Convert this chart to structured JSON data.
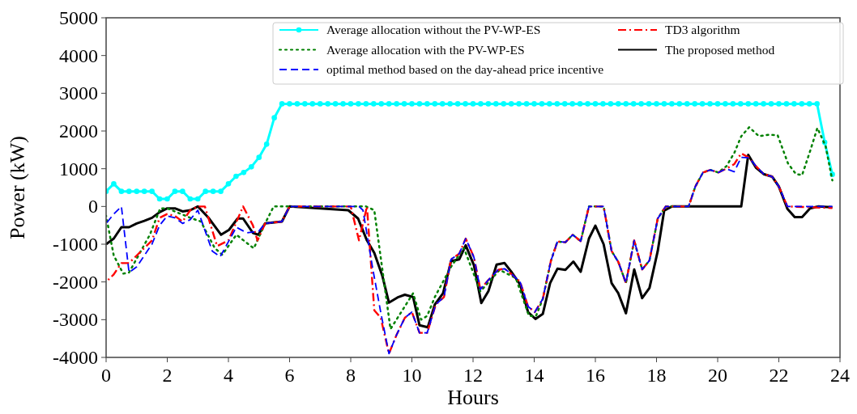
{
  "chart_data": {
    "type": "line",
    "xlabel": "Hours",
    "ylabel": "Power (kW)",
    "xlim": [
      0,
      24
    ],
    "ylim": [
      -4000,
      5000
    ],
    "xticks": [
      0,
      2,
      4,
      6,
      8,
      10,
      12,
      14,
      16,
      18,
      20,
      22,
      24
    ],
    "yticks": [
      -4000,
      -3000,
      -2000,
      -1000,
      0,
      1000,
      2000,
      3000,
      4000,
      5000
    ],
    "grid": false,
    "legend": "top right",
    "series": [
      {
        "name": "Average allocation without the PV-WP-ES",
        "color": "#00ffff",
        "marker": "circle",
        "line_style": "solid",
        "x": [
          0,
          0.25,
          0.5,
          0.75,
          1,
          1.25,
          1.5,
          1.75,
          2,
          2.25,
          2.5,
          2.75,
          3,
          3.25,
          3.5,
          3.75,
          4,
          4.25,
          4.5,
          4.75,
          5,
          5.25,
          5.5,
          5.75,
          6,
          6.25,
          6.5,
          6.75,
          7,
          7.25,
          7.5,
          7.75,
          8,
          8.25,
          8.5,
          8.75,
          9,
          9.25,
          9.5,
          9.75,
          10,
          10.25,
          10.5,
          10.75,
          11,
          11.25,
          11.5,
          11.75,
          12,
          12.25,
          12.5,
          12.75,
          13,
          13.25,
          13.5,
          13.75,
          14,
          14.25,
          14.5,
          14.75,
          15,
          15.25,
          15.5,
          15.75,
          16,
          16.25,
          16.5,
          16.75,
          17,
          17.25,
          17.5,
          17.75,
          18,
          18.25,
          18.5,
          18.75,
          19,
          19.25,
          19.5,
          19.75,
          20,
          20.25,
          20.5,
          20.75,
          21,
          21.25,
          21.5,
          21.75,
          22,
          22.25,
          22.5,
          22.75,
          23,
          23.25,
          23.5,
          23.75
        ],
        "values": [
          400,
          600,
          400,
          400,
          400,
          400,
          400,
          200,
          200,
          400,
          400,
          200,
          200,
          400,
          400,
          400,
          600,
          800,
          900,
          1050,
          1300,
          1650,
          2350,
          2720,
          2720,
          2720,
          2720,
          2720,
          2720,
          2720,
          2720,
          2720,
          2720,
          2720,
          2720,
          2720,
          2720,
          2720,
          2720,
          2720,
          2720,
          2720,
          2720,
          2720,
          2720,
          2720,
          2720,
          2720,
          2720,
          2720,
          2720,
          2720,
          2720,
          2720,
          2720,
          2720,
          2720,
          2720,
          2720,
          2720,
          2720,
          2720,
          2720,
          2720,
          2720,
          2720,
          2720,
          2720,
          2720,
          2720,
          2720,
          2720,
          2720,
          2720,
          2720,
          2720,
          2720,
          2720,
          2720,
          2720,
          2720,
          2720,
          2720,
          2720,
          2720,
          2720,
          2720,
          2720,
          2720,
          2720,
          2720,
          2720,
          2720,
          2720,
          1700,
          850
        ]
      },
      {
        "name": "Average allocation with the PV-WP-ES",
        "color": "#008000",
        "marker": "none",
        "line_style": "dotted",
        "x": [
          0,
          0.25,
          0.56,
          0.75,
          1.43,
          1.77,
          2.0,
          2.75,
          3.1,
          3.55,
          3.8,
          4.26,
          4.83,
          5.2,
          5.48,
          8.5,
          8.77,
          9.3,
          10.04,
          10.3,
          10.5,
          10.75,
          11.28,
          11.7,
          12.24,
          12.87,
          13.4,
          13.83,
          14.06,
          14.28,
          14.55,
          14.76,
          15.02,
          15.26,
          15.52,
          15.79,
          16.27,
          16.53,
          16.75,
          17.0,
          17.27,
          17.53,
          17.77,
          18.04,
          18.3,
          19.05,
          19.27,
          19.52,
          19.76,
          20.02,
          20.29,
          20.55,
          20.77,
          21.03,
          21.35,
          21.65,
          21.96,
          22.3,
          22.56,
          22.76,
          23.02,
          23.26,
          23.53,
          23.75
        ],
        "values": [
          -250,
          -1300,
          -1780,
          -1750,
          -750,
          -50,
          -50,
          -300,
          -400,
          -1100,
          -1280,
          -750,
          -1110,
          -450,
          0,
          0,
          -100,
          -3250,
          -2300,
          -3000,
          -2900,
          -2400,
          -1600,
          -1100,
          -2250,
          -1680,
          -1900,
          -2900,
          -2900,
          -2450,
          -1430,
          -930,
          -950,
          -750,
          -920,
          0,
          0,
          -1180,
          -1470,
          -2030,
          -900,
          -1670,
          -1430,
          -320,
          0,
          0,
          530,
          900,
          970,
          900,
          1070,
          1430,
          1860,
          2100,
          1860,
          1900,
          1890,
          1140,
          860,
          830,
          1460,
          2080,
          1600,
          690
        ]
      },
      {
        "name": "optimal method based on the day-ahead price incentive",
        "color": "#0000ff",
        "marker": "none",
        "line_style": "dashed",
        "x": [
          0,
          0.25,
          0.5,
          0.75,
          1,
          1.25,
          1.5,
          1.75,
          2,
          2.25,
          2.5,
          2.75,
          3,
          3.47,
          3.73,
          4.26,
          4.6,
          5,
          5.2,
          5.75,
          6,
          8.27,
          8.4,
          8.72,
          8.98,
          9.25,
          9.5,
          9.77,
          10,
          10.25,
          10.5,
          10.78,
          11.05,
          11.28,
          11.55,
          11.76,
          12.03,
          12.24,
          12.5,
          12.82,
          13.03,
          13.3,
          13.54,
          13.8,
          14.02,
          14.28,
          14.55,
          14.76,
          15.02,
          15.26,
          15.52,
          15.79,
          16.27,
          16.53,
          16.75,
          17,
          17.27,
          17.53,
          17.77,
          18.04,
          18.3,
          19.05,
          19.27,
          19.52,
          19.76,
          20.02,
          20.28,
          20.54,
          20.77,
          21.03,
          21.25,
          21.5,
          21.78,
          22,
          22.28,
          23.75
        ],
        "values": [
          -450,
          -200,
          0,
          -1750,
          -1600,
          -1300,
          -1000,
          -500,
          -250,
          -300,
          -450,
          -350,
          -100,
          -1180,
          -1330,
          -550,
          -700,
          -650,
          -450,
          -400,
          0,
          0,
          -100,
          -1650,
          -2800,
          -3900,
          -3400,
          -2950,
          -2800,
          -3350,
          -3350,
          -2600,
          -2400,
          -1400,
          -1250,
          -850,
          -1350,
          -2200,
          -1950,
          -1680,
          -1650,
          -1820,
          -2000,
          -2650,
          -2800,
          -2450,
          -1430,
          -930,
          -950,
          -750,
          -920,
          0,
          0,
          -1180,
          -1470,
          -2030,
          -900,
          -1670,
          -1430,
          -320,
          0,
          0,
          530,
          900,
          970,
          900,
          1000,
          920,
          1300,
          1290,
          1070,
          860,
          790,
          530,
          0,
          0
        ]
      },
      {
        "name": "TD3 algorithm",
        "color": "#ff0000",
        "marker": "none",
        "line_style": "dashdot",
        "x": [
          0,
          0.25,
          0.5,
          0.75,
          1,
          1.5,
          1.75,
          2,
          2.25,
          2.5,
          2.75,
          3,
          3.23,
          3.63,
          4,
          4.48,
          4.8,
          4.95,
          5.2,
          5.75,
          6,
          8,
          8.27,
          8.53,
          8.77,
          8.98,
          9.25,
          9.5,
          9.77,
          10,
          10.25,
          10.5,
          10.78,
          11.05,
          11.28,
          11.55,
          11.76,
          12.03,
          12.24,
          12.5,
          12.82,
          13.03,
          13.3,
          13.54,
          13.8,
          14.02,
          14.28,
          14.55,
          14.76,
          15.02,
          15.26,
          15.52,
          15.79,
          16.27,
          16.53,
          16.75,
          17,
          17.27,
          17.53,
          17.77,
          18.04,
          18.3,
          19.05,
          19.27,
          19.52,
          19.76,
          20.02,
          20.28,
          20.54,
          20.77,
          21.03,
          21.25,
          21.5,
          21.78,
          22,
          22.28,
          23.75
        ],
        "values": [
          -2000,
          -1800,
          -1500,
          -1500,
          -1300,
          -900,
          -300,
          -200,
          -250,
          -400,
          -100,
          0,
          0,
          -1050,
          -900,
          0,
          -500,
          -900,
          -450,
          -400,
          0,
          0,
          -900,
          0,
          -2750,
          -2950,
          -3900,
          -3400,
          -2950,
          -2800,
          -3350,
          -3350,
          -2600,
          -2400,
          -1400,
          -1250,
          -850,
          -1350,
          -2200,
          -1950,
          -1680,
          -1650,
          -1820,
          -2000,
          -2650,
          -2800,
          -2450,
          -1430,
          -930,
          -950,
          -750,
          -920,
          0,
          0,
          -1180,
          -1470,
          -2030,
          -900,
          -1670,
          -1430,
          -320,
          0,
          0,
          530,
          900,
          970,
          900,
          1000,
          1120,
          1410,
          1290,
          1070,
          860,
          790,
          530,
          0,
          -40
        ]
      },
      {
        "name": "The proposed method",
        "color": "#000000",
        "marker": "none",
        "line_style": "solid",
        "x": [
          0,
          0.25,
          0.5,
          0.75,
          1,
          1.25,
          1.5,
          1.75,
          2,
          2.25,
          2.5,
          2.75,
          3,
          3.37,
          3.76,
          4.02,
          4.3,
          4.48,
          4.8,
          4.98,
          5.2,
          5.75,
          6,
          7.92,
          8.24,
          8.53,
          8.77,
          9.03,
          9.25,
          9.56,
          9.77,
          10.04,
          10.25,
          10.52,
          10.75,
          11.02,
          11.28,
          11.55,
          11.76,
          12.03,
          12.27,
          12.5,
          12.77,
          13.03,
          13.27,
          13.54,
          13.8,
          14.04,
          14.28,
          14.52,
          14.76,
          15.02,
          15.28,
          15.52,
          15.79,
          16,
          16.27,
          16.53,
          16.75,
          17,
          17.27,
          17.53,
          17.77,
          18.04,
          18.25,
          18.5,
          20.77,
          21,
          21.25,
          21.5,
          21.78,
          22,
          22.28,
          22.52,
          22.76,
          23.02,
          23.3,
          23.75
        ],
        "values": [
          -1000,
          -850,
          -550,
          -550,
          -450,
          -380,
          -300,
          -150,
          -50,
          -50,
          -130,
          -100,
          0,
          -320,
          -750,
          -620,
          -320,
          -320,
          -700,
          -750,
          -450,
          -400,
          0,
          -100,
          -320,
          -900,
          -1230,
          -1830,
          -2550,
          -2400,
          -2340,
          -2400,
          -3150,
          -3200,
          -2600,
          -2300,
          -1450,
          -1400,
          -1030,
          -1560,
          -2560,
          -2250,
          -1540,
          -1500,
          -1750,
          -2070,
          -2800,
          -2980,
          -2850,
          -2030,
          -1650,
          -1680,
          -1460,
          -1730,
          -850,
          -510,
          -1000,
          -2030,
          -2300,
          -2830,
          -1670,
          -2430,
          -2160,
          -1180,
          -110,
          0,
          0,
          1370,
          1030,
          860,
          790,
          530,
          -60,
          -280,
          -280,
          -50,
          0,
          -20
        ]
      }
    ]
  }
}
